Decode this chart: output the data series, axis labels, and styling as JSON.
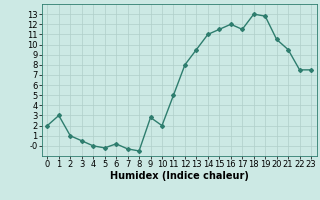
{
  "xlabel": "Humidex (Indice chaleur)",
  "x": [
    0,
    1,
    2,
    3,
    4,
    5,
    6,
    7,
    8,
    9,
    10,
    11,
    12,
    13,
    14,
    15,
    16,
    17,
    18,
    19,
    20,
    21,
    22,
    23
  ],
  "y": [
    2,
    3,
    1,
    0.5,
    0,
    -0.2,
    0.2,
    -0.3,
    -0.5,
    2.8,
    2,
    5,
    8,
    9.5,
    11,
    11.5,
    12,
    11.5,
    13,
    12.8,
    10.5,
    9.5,
    7.5,
    7.5
  ],
  "line_color": "#2e7d6e",
  "marker": "D",
  "marker_size": 2.0,
  "bg_color": "#cce9e4",
  "grid_color": "#b0cfc9",
  "ylim": [
    -1,
    14
  ],
  "xlim": [
    -0.5,
    23.5
  ],
  "yticks": [
    0,
    1,
    2,
    3,
    4,
    5,
    6,
    7,
    8,
    9,
    10,
    11,
    12,
    13
  ],
  "ytick_labels": [
    "-0",
    "1",
    "2",
    "3",
    "4",
    "5",
    "6",
    "7",
    "8",
    "9",
    "10",
    "11",
    "12",
    "13"
  ],
  "xticks": [
    0,
    1,
    2,
    3,
    4,
    5,
    6,
    7,
    8,
    9,
    10,
    11,
    12,
    13,
    14,
    15,
    16,
    17,
    18,
    19,
    20,
    21,
    22,
    23
  ],
  "xlabel_fontsize": 7,
  "tick_fontsize": 6,
  "line_width": 1.0
}
